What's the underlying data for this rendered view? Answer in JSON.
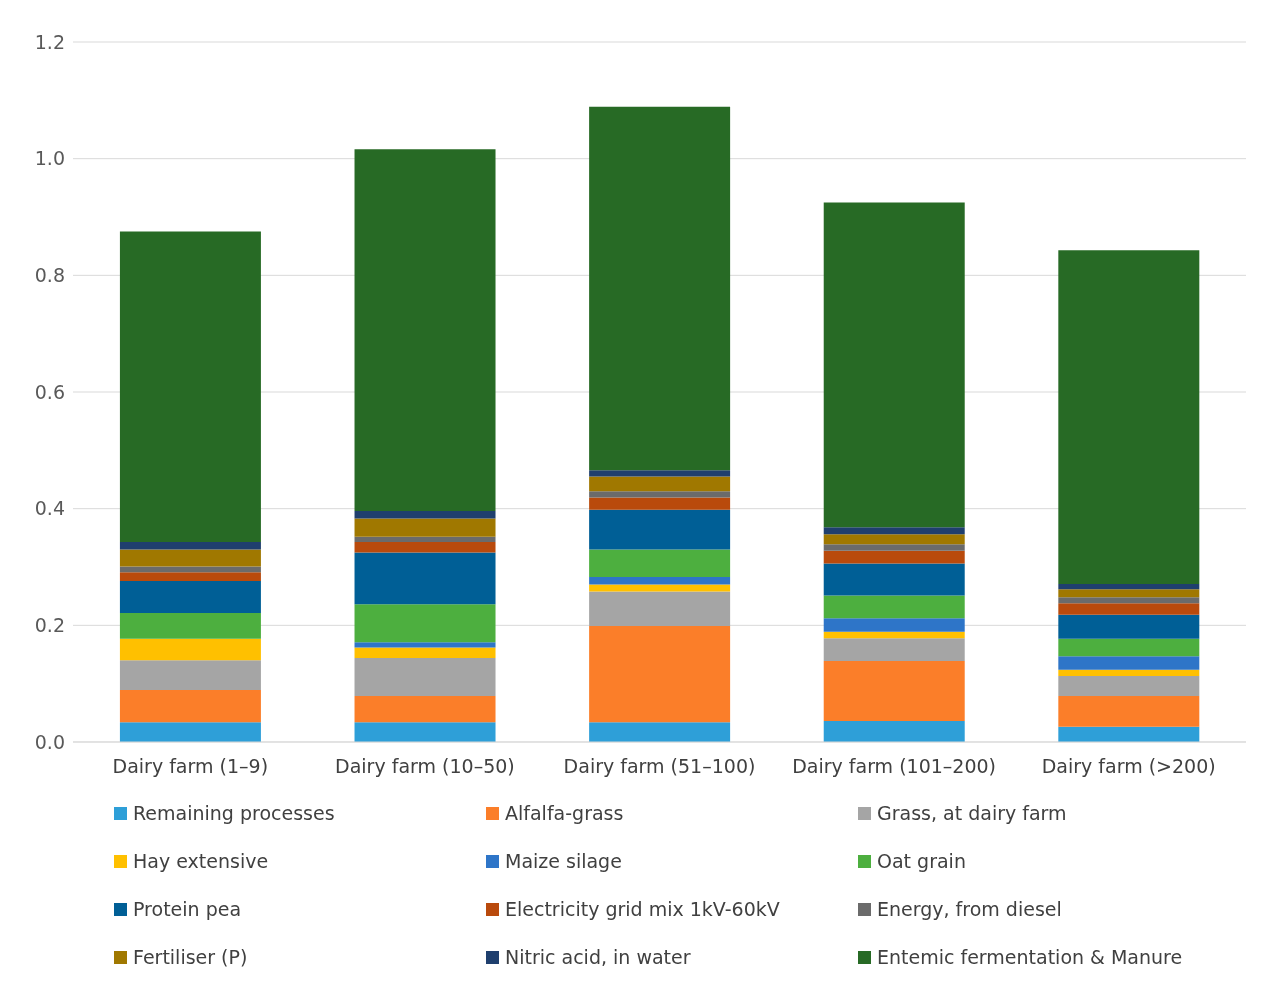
{
  "chart_data": {
    "type": "bar",
    "stacked": true,
    "categories": [
      "Dairy farm (1–9)",
      "Dairy farm (10–50)",
      "Dairy farm (51–100)",
      "Dairy farm (101–200)",
      "Dairy farm (>200)"
    ],
    "series": [
      {
        "name": "Remaining processes",
        "color": "#2e9fd8",
        "values": [
          0.034,
          0.034,
          0.034,
          0.036,
          0.026
        ]
      },
      {
        "name": "Alfalfa-grass",
        "color": "#fb7e29",
        "values": [
          0.055,
          0.045,
          0.165,
          0.103,
          0.053
        ]
      },
      {
        "name": "Grass, at dairy farm",
        "color": "#a5a5a5",
        "values": [
          0.051,
          0.065,
          0.059,
          0.039,
          0.034
        ]
      },
      {
        "name": "Hay extensive",
        "color": "#ffc000",
        "values": [
          0.037,
          0.018,
          0.012,
          0.011,
          0.011
        ]
      },
      {
        "name": "Maize silage",
        "color": "#2e75c8",
        "values": [
          0,
          0.009,
          0.013,
          0.023,
          0.023
        ]
      },
      {
        "name": "Oat grain",
        "color": "#4daf3f",
        "values": [
          0.044,
          0.065,
          0.047,
          0.039,
          0.03
        ]
      },
      {
        "name": "Protein pea",
        "color": "#005f96",
        "values": [
          0.055,
          0.089,
          0.068,
          0.055,
          0.041
        ]
      },
      {
        "name": "Electricity grid mix 1kV-60kV",
        "color": "#b94a0c",
        "values": [
          0.015,
          0.018,
          0.021,
          0.022,
          0.02
        ]
      },
      {
        "name": "Energy, from diesel",
        "color": "#6b6b6b",
        "values": [
          0.01,
          0.009,
          0.011,
          0.011,
          0.01
        ]
      },
      {
        "name": "Fertiliser (P)",
        "color": "#a07800",
        "values": [
          0.029,
          0.031,
          0.025,
          0.017,
          0.014
        ]
      },
      {
        "name": "Nitric acid, in water",
        "color": "#1f3f6e",
        "values": [
          0.013,
          0.013,
          0.011,
          0.012,
          0.009
        ]
      },
      {
        "name": "Entemic fermentation & Manure",
        "color": "#276a25",
        "values": [
          0.532,
          0.62,
          0.623,
          0.557,
          0.572
        ]
      }
    ],
    "ylim": [
      0,
      1.2
    ],
    "yticks": [
      {
        "value": 0,
        "label": "0.0"
      },
      {
        "value": 0.2,
        "label": "0.2"
      },
      {
        "value": 0.4,
        "label": "0.4"
      },
      {
        "value": 0.6,
        "label": "0.6"
      },
      {
        "value": 0.8,
        "label": "0.8"
      },
      {
        "value": 1,
        "label": "1.0"
      },
      {
        "value": 1.2,
        "label": "1.2"
      }
    ],
    "grid": "y",
    "legend": "bottom"
  }
}
